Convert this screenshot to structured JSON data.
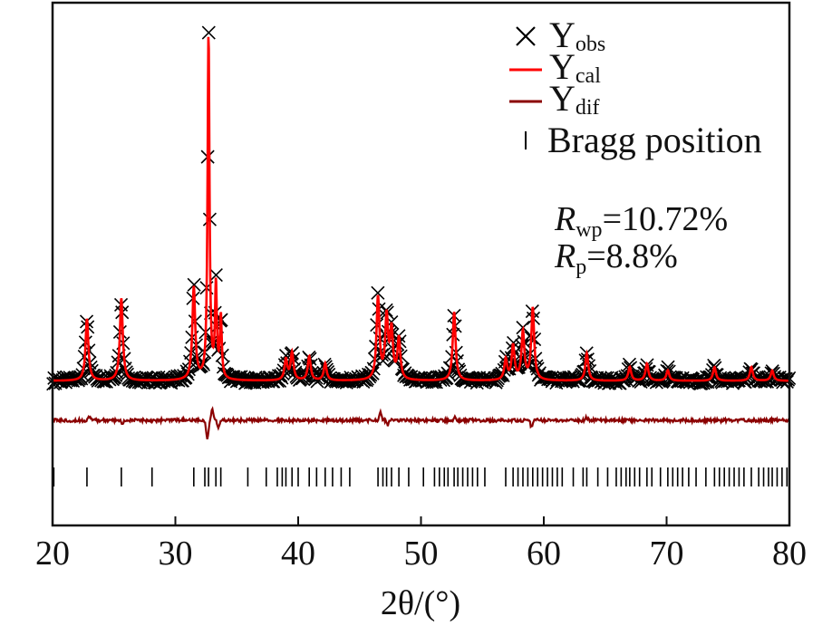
{
  "chart_data": {
    "type": "line",
    "xlabel": "2θ/(°)",
    "xlim": [
      20,
      80
    ],
    "x_ticks": [
      20,
      30,
      40,
      50,
      60,
      70,
      80
    ],
    "grid": false,
    "legend_position": "top-right",
    "legend": [
      {
        "key": "obs",
        "base": "Y",
        "sub": "obs",
        "marker": "x",
        "color": "#000000"
      },
      {
        "key": "cal",
        "base": "Y",
        "sub": "cal",
        "marker": "line",
        "color": "#ff0000"
      },
      {
        "key": "dif",
        "base": "Y",
        "sub": "dif",
        "marker": "line",
        "color": "#8b0000"
      },
      {
        "key": "bragg",
        "label": "Bragg position",
        "marker": "tick",
        "color": "#000000"
      }
    ],
    "stats": [
      {
        "symbol": "R",
        "sub": "wp",
        "value": "=10.72%"
      },
      {
        "symbol": "R",
        "sub": "p",
        "value": "=8.8%"
      }
    ],
    "baseline": 0.02,
    "peaks": [
      {
        "x": 22.8,
        "h": 0.18
      },
      {
        "x": 25.6,
        "h": 0.24
      },
      {
        "x": 31.5,
        "h": 0.27
      },
      {
        "x": 32.7,
        "h": 1.0
      },
      {
        "x": 33.3,
        "h": 0.27
      },
      {
        "x": 33.7,
        "h": 0.18
      },
      {
        "x": 39.0,
        "h": 0.06
      },
      {
        "x": 39.5,
        "h": 0.08
      },
      {
        "x": 40.9,
        "h": 0.07
      },
      {
        "x": 42.2,
        "h": 0.05
      },
      {
        "x": 46.5,
        "h": 0.24
      },
      {
        "x": 47.2,
        "h": 0.18
      },
      {
        "x": 47.6,
        "h": 0.14
      },
      {
        "x": 48.2,
        "h": 0.12
      },
      {
        "x": 52.7,
        "h": 0.2
      },
      {
        "x": 56.9,
        "h": 0.06
      },
      {
        "x": 57.5,
        "h": 0.1
      },
      {
        "x": 58.3,
        "h": 0.14
      },
      {
        "x": 59.1,
        "h": 0.21
      },
      {
        "x": 63.5,
        "h": 0.08
      },
      {
        "x": 67.0,
        "h": 0.04
      },
      {
        "x": 68.4,
        "h": 0.05
      },
      {
        "x": 70.1,
        "h": 0.03
      },
      {
        "x": 73.9,
        "h": 0.04
      },
      {
        "x": 76.9,
        "h": 0.04
      },
      {
        "x": 78.6,
        "h": 0.03
      }
    ],
    "difference": [
      {
        "x": 23.0,
        "d": 0.012
      },
      {
        "x": 25.7,
        "d": -0.01
      },
      {
        "x": 32.6,
        "d": -0.055
      },
      {
        "x": 33.0,
        "d": 0.03
      },
      {
        "x": 33.5,
        "d": -0.02
      },
      {
        "x": 46.7,
        "d": 0.02
      },
      {
        "x": 47.3,
        "d": -0.012
      },
      {
        "x": 52.8,
        "d": 0.01
      },
      {
        "x": 59.0,
        "d": -0.018
      },
      {
        "x": 63.5,
        "d": 0.008
      }
    ],
    "bragg_positions": [
      20.1,
      22.8,
      25.6,
      28.1,
      31.5,
      32.4,
      32.7,
      33.3,
      33.7,
      35.9,
      37.4,
      38.3,
      38.7,
      39.0,
      39.5,
      40.0,
      40.9,
      41.5,
      42.2,
      42.8,
      43.5,
      44.2,
      46.5,
      46.9,
      47.2,
      47.6,
      48.2,
      49.0,
      50.2,
      51.1,
      51.5,
      51.9,
      52.2,
      52.7,
      53.0,
      53.4,
      53.8,
      54.2,
      54.6,
      55.2,
      56.9,
      57.5,
      57.9,
      58.3,
      58.7,
      59.1,
      59.5,
      59.9,
      60.3,
      60.7,
      61.1,
      61.5,
      62.4,
      63.2,
      63.5,
      64.4,
      65.2,
      65.9,
      66.3,
      66.7,
      67.0,
      67.4,
      67.8,
      68.4,
      68.8,
      69.5,
      70.1,
      70.5,
      70.9,
      71.3,
      71.8,
      72.4,
      73.2,
      73.9,
      74.3,
      74.7,
      75.1,
      75.5,
      75.9,
      76.3,
      76.9,
      77.5,
      77.9,
      78.3,
      78.6,
      79.0,
      79.4,
      79.8
    ]
  }
}
